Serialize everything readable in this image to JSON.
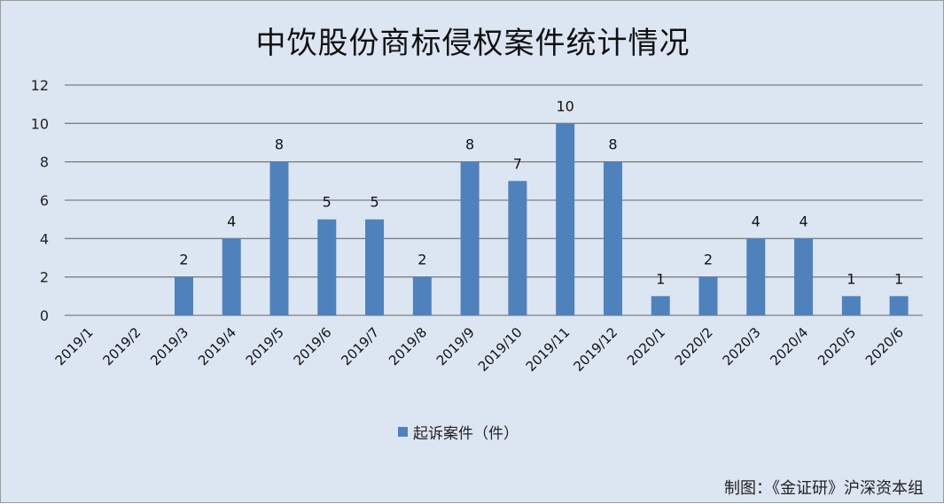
{
  "chart_data": {
    "type": "bar",
    "title": "中饮股份商标侵权案件统计情况",
    "categories": [
      "2019/1",
      "2019/2",
      "2019/3",
      "2019/4",
      "2019/5",
      "2019/6",
      "2019/7",
      "2019/8",
      "2019/9",
      "2019/10",
      "2019/11",
      "2019/12",
      "2020/1",
      "2020/2",
      "2020/3",
      "2020/4",
      "2020/5",
      "2020/6"
    ],
    "series": [
      {
        "name": "起诉案件（件）",
        "values": [
          0,
          0,
          2,
          4,
          8,
          5,
          5,
          2,
          8,
          7,
          10,
          8,
          1,
          2,
          4,
          4,
          1,
          1
        ]
      }
    ],
    "data_labels": [
      "",
      "",
      "2",
      "4",
      "8",
      "5",
      "5",
      "2",
      "8",
      "7",
      "10",
      "8",
      "1",
      "2",
      "4",
      "4",
      "1",
      "1"
    ],
    "ylim": [
      0,
      12
    ],
    "yticks": [
      0,
      2,
      4,
      6,
      8,
      10,
      12
    ],
    "grid": true,
    "legend": "bottom"
  },
  "colors": {
    "bar": "#4f81bd",
    "background": "#dce6f2",
    "grid": "#7f7f7f"
  },
  "credit": "制图：《金证研》沪深资本组"
}
